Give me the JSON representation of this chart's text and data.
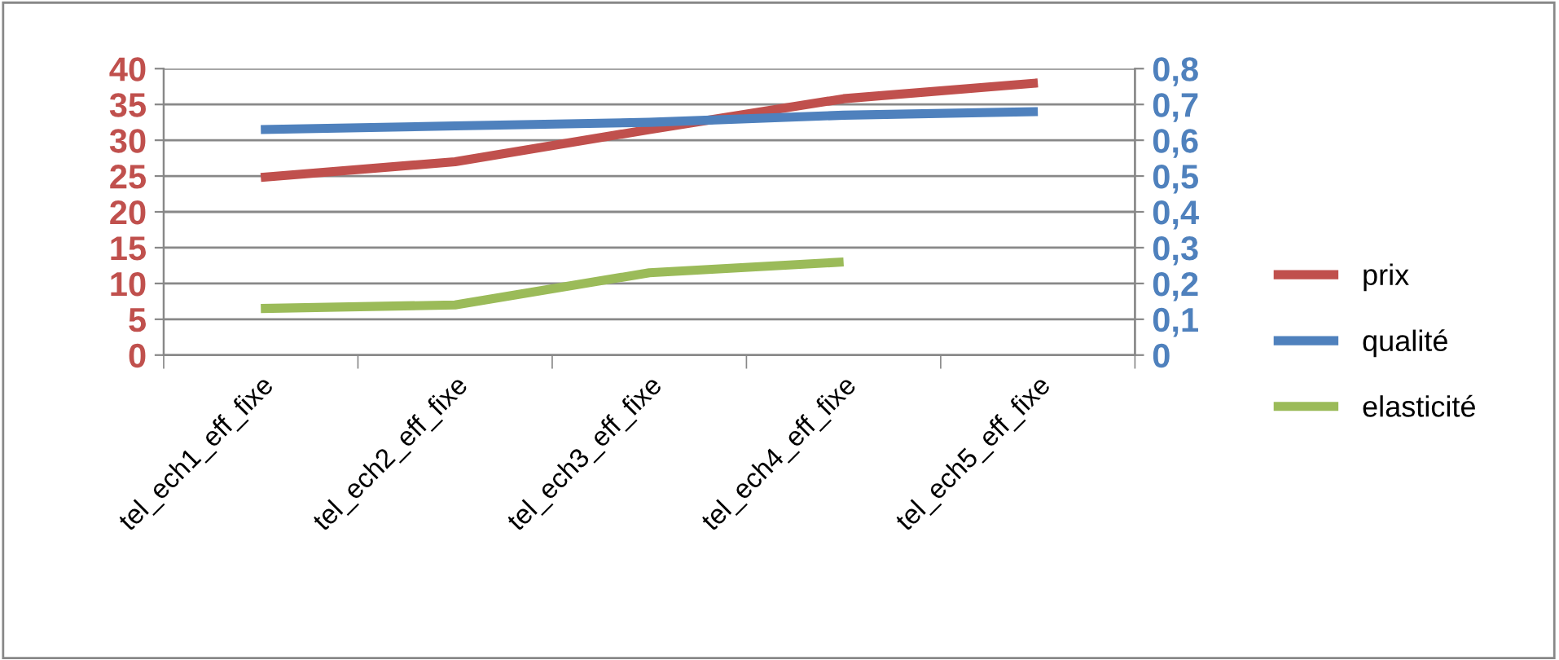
{
  "chart_data": {
    "type": "line",
    "categories": [
      "tel_ech1_eff_fixe",
      "tel_ech2_eff_fixe",
      "tel_ech3_eff_fixe",
      "tel_ech4_eff_fixe",
      "tel_ech5_eff_fixe"
    ],
    "series": [
      {
        "name": "prix",
        "color": "#c0504d",
        "values": [
          24.8,
          27,
          31.5,
          35.8,
          38
        ]
      },
      {
        "name": "qualité",
        "color": "#4f81bd",
        "axis": "y2",
        "values": [
          0.63,
          0.64,
          0.65,
          0.67,
          0.68
        ]
      },
      {
        "name": "elasticité",
        "color": "#9bbb59",
        "axis": "y2",
        "values": [
          0.13,
          0.14,
          0.23,
          0.26,
          null
        ]
      }
    ],
    "ylim": [
      0,
      40
    ],
    "yticks": [
      0,
      5,
      10,
      15,
      20,
      25,
      30,
      35,
      40
    ],
    "y2lim": [
      0,
      0.8
    ],
    "y2ticks": [
      0,
      {
        "value": 0.1,
        "label": "0,1"
      },
      {
        "value": 0.2,
        "label": "0,2"
      },
      {
        "value": 0.3,
        "label": "0,3"
      },
      {
        "value": 0.4,
        "label": "0,4"
      },
      {
        "value": 0.5,
        "label": "0,5"
      },
      {
        "value": 0.6,
        "label": "0,6"
      },
      {
        "value": 0.7,
        "label": "0,7"
      },
      {
        "value": 0.8,
        "label": "0,8"
      }
    ],
    "grid": "y",
    "legend": "right",
    "marker": "none",
    "line_style": "solid"
  }
}
